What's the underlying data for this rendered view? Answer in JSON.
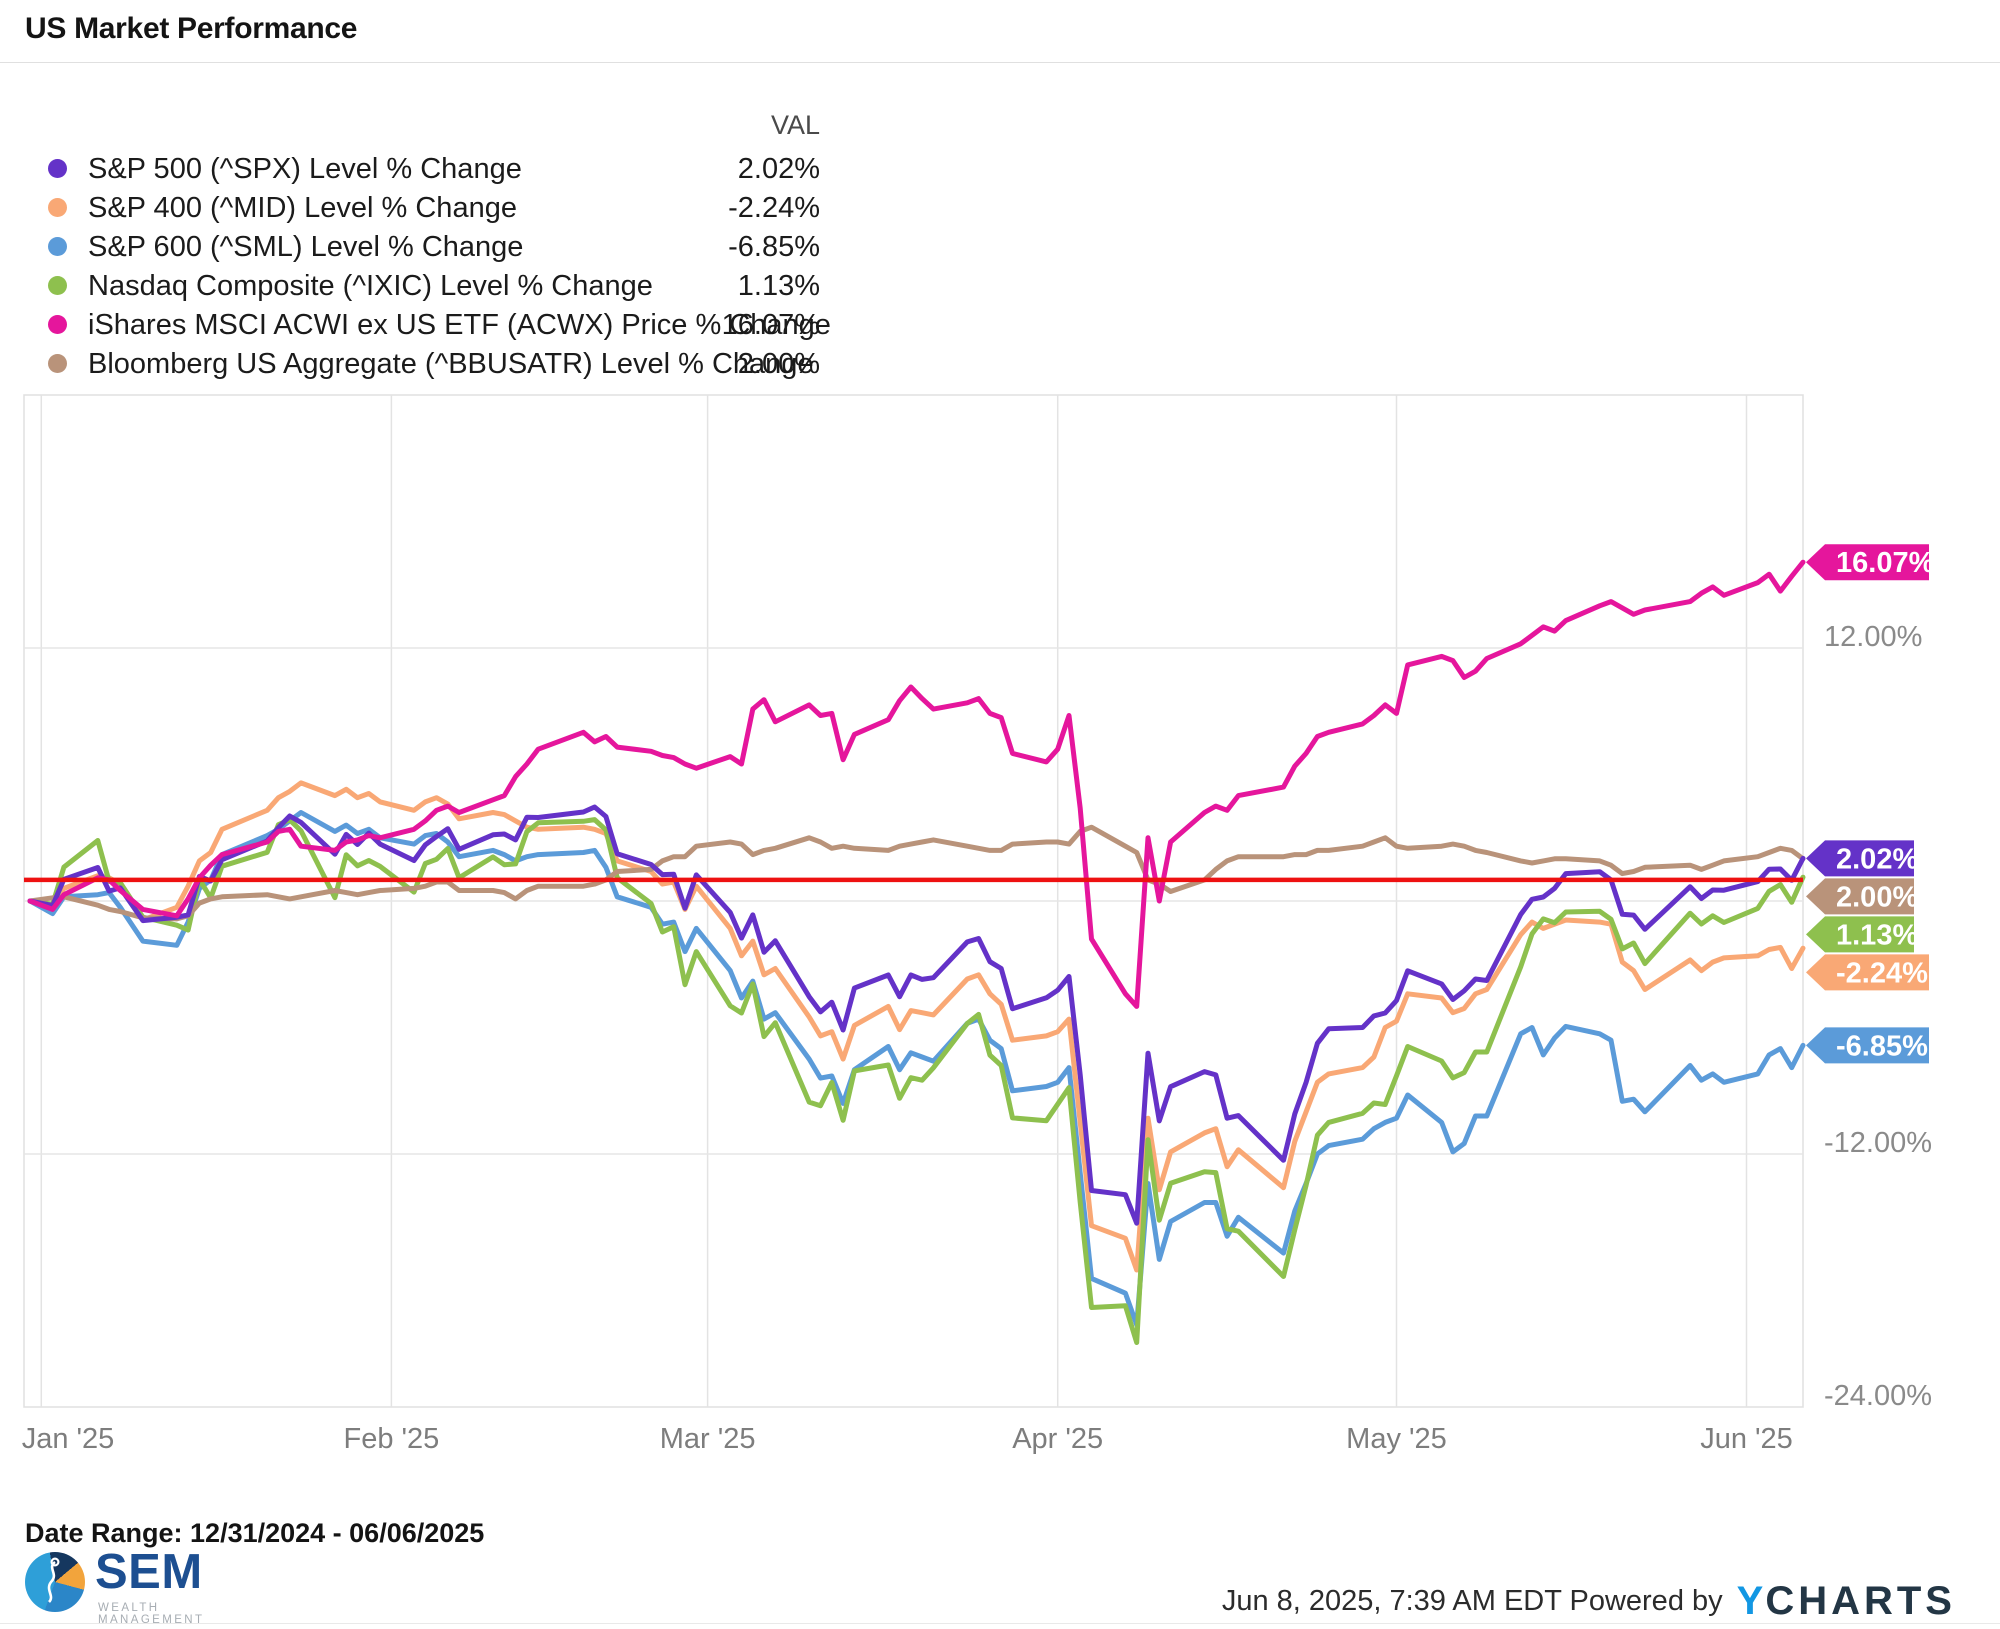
{
  "header": {
    "title": "US Market Performance"
  },
  "legend": {
    "value_header": "VAL",
    "items": [
      {
        "label": "S&P 500 (^SPX) Level % Change",
        "value": "2.02%",
        "color": "#6432c8"
      },
      {
        "label": "S&P 400 (^MID) Level % Change",
        "value": "-2.24%",
        "color": "#f9a875"
      },
      {
        "label": "S&P 600 (^SML) Level % Change",
        "value": "-6.85%",
        "color": "#5b9bd9"
      },
      {
        "label": "Nasdaq Composite (^IXIC) Level % Change",
        "value": "1.13%",
        "color": "#8ec04e"
      },
      {
        "label": "iShares MSCI ACWI ex US ETF (ACWX) Price % Change",
        "value": "16.07%",
        "color": "#e5169c"
      },
      {
        "label": "Bloomberg US Aggregate (^BBUSATR) Level % Change",
        "value": "2.00%",
        "color": "#b9937a"
      }
    ]
  },
  "chart_data": {
    "type": "line",
    "title": "US Market Performance",
    "ylabel": "% Change",
    "ylim": [
      -24,
      24
    ],
    "grid": true,
    "legend_position": "top-left",
    "reference_line": {
      "value": 1.0,
      "color": "#ee1111"
    },
    "x": {
      "dates": [
        "12/31",
        "01/02",
        "01/03",
        "01/06",
        "01/07",
        "01/08",
        "01/10",
        "01/13",
        "01/14",
        "01/15",
        "01/16",
        "01/17",
        "01/21",
        "01/22",
        "01/23",
        "01/24",
        "01/27",
        "01/28",
        "01/29",
        "01/30",
        "01/31",
        "02/03",
        "02/04",
        "02/05",
        "02/06",
        "02/07",
        "02/10",
        "02/11",
        "02/12",
        "02/13",
        "02/14",
        "02/18",
        "02/19",
        "02/20",
        "02/21",
        "02/24",
        "02/25",
        "02/26",
        "02/27",
        "02/28",
        "03/03",
        "03/04",
        "03/05",
        "03/06",
        "03/07",
        "03/10",
        "03/11",
        "03/12",
        "03/13",
        "03/14",
        "03/17",
        "03/18",
        "03/19",
        "03/20",
        "03/21",
        "03/24",
        "03/25",
        "03/26",
        "03/27",
        "03/28",
        "03/31",
        "04/01",
        "04/02",
        "04/03",
        "04/04",
        "04/07",
        "04/08",
        "04/09",
        "04/10",
        "04/11",
        "04/14",
        "04/15",
        "04/16",
        "04/17",
        "04/21",
        "04/22",
        "04/23",
        "04/24",
        "04/25",
        "04/28",
        "04/29",
        "04/30",
        "05/01",
        "05/02",
        "05/05",
        "05/06",
        "05/07",
        "05/08",
        "05/09",
        "05/12",
        "05/13",
        "05/14",
        "05/15",
        "05/16",
        "05/19",
        "05/20",
        "05/21",
        "05/22",
        "05/23",
        "05/27",
        "05/28",
        "05/29",
        "05/30",
        "06/02",
        "06/03",
        "06/04",
        "06/05",
        "06/06"
      ],
      "day_offsets": [
        0,
        2,
        3,
        6,
        7,
        8,
        10,
        13,
        14,
        15,
        16,
        17,
        21,
        22,
        23,
        24,
        27,
        28,
        29,
        30,
        31,
        34,
        35,
        36,
        37,
        38,
        41,
        42,
        43,
        44,
        45,
        49,
        50,
        51,
        52,
        55,
        56,
        57,
        58,
        59,
        62,
        63,
        64,
        65,
        66,
        69,
        70,
        71,
        72,
        73,
        76,
        77,
        78,
        79,
        80,
        83,
        84,
        85,
        86,
        87,
        90,
        91,
        92,
        93,
        94,
        97,
        98,
        99,
        100,
        101,
        104,
        105,
        106,
        107,
        111,
        112,
        113,
        114,
        115,
        118,
        119,
        120,
        121,
        122,
        125,
        126,
        127,
        128,
        129,
        132,
        133,
        134,
        135,
        136,
        139,
        140,
        141,
        142,
        143,
        147,
        148,
        149,
        150,
        153,
        154,
        155,
        156,
        157
      ],
      "ticks": [
        {
          "label": "Jan '25",
          "day": 1
        },
        {
          "label": "Feb '25",
          "day": 32
        },
        {
          "label": "Mar '25",
          "day": 60
        },
        {
          "label": "Apr '25",
          "day": 91
        },
        {
          "label": "May '25",
          "day": 121
        },
        {
          "label": "Jun '25",
          "day": 152
        }
      ]
    },
    "y_ticks": [
      {
        "label": "12.00%",
        "value": 12
      },
      {
        "label": "-12.00%",
        "value": -12
      },
      {
        "label": "-24.00%",
        "value": -24
      }
    ],
    "series": [
      {
        "name": "S&P 500 (^SPX) Level % Change",
        "short": "spx",
        "color": "#6432c8",
        "end_label": "2.02%",
        "values": [
          0,
          -0.22,
          1.03,
          1.59,
          0.47,
          0.62,
          -0.93,
          -0.77,
          -0.66,
          1.16,
          0.95,
          1.96,
          2.85,
          3.48,
          4.03,
          3.73,
          2.22,
          3.16,
          2.68,
          3.22,
          2.7,
          1.92,
          2.66,
          3.06,
          3.43,
          2.45,
          3.14,
          3.18,
          2.9,
          3.97,
          3.96,
          4.22,
          4.46,
          4.01,
          2.24,
          1.73,
          1.25,
          1.27,
          -0.34,
          1.24,
          -0.54,
          -1.76,
          -0.66,
          -2.43,
          -1.89,
          -4.54,
          -5.26,
          -4.8,
          -6.12,
          -4.13,
          -3.51,
          -4.54,
          -3.51,
          -3.72,
          -3.64,
          -1.94,
          -1.78,
          -2.88,
          -3.2,
          -5.11,
          -4.59,
          -4.23,
          -3.58,
          -8.25,
          -13.73,
          -13.93,
          -15.28,
          -7.22,
          -10.43,
          -8.81,
          -8.09,
          -8.25,
          -10.3,
          -10.18,
          -12.3,
          -10.1,
          -8.6,
          -6.75,
          -6.06,
          -6.0,
          -5.45,
          -5.31,
          -4.72,
          -3.31,
          -3.93,
          -4.67,
          -4.26,
          -3.7,
          -3.77,
          -0.64,
          0.08,
          0.19,
          0.6,
          1.3,
          1.39,
          1.0,
          -0.63,
          -0.67,
          -1.34,
          0.68,
          0.12,
          0.52,
          0.51,
          0.92,
          1.51,
          1.52,
          0.98,
          2.02
        ]
      },
      {
        "name": "S&P 400 (^MID) Level % Change",
        "short": "mid",
        "color": "#f9a875",
        "end_label": "-2.24%",
        "values": [
          0,
          -0.3,
          0.6,
          1.2,
          1.1,
          0.8,
          -0.9,
          -0.3,
          0.7,
          1.9,
          2.3,
          3.4,
          4.3,
          4.9,
          5.2,
          5.6,
          5.0,
          5.3,
          4.9,
          5.1,
          4.7,
          4.3,
          4.7,
          4.9,
          4.6,
          3.9,
          4.2,
          4.1,
          3.8,
          3.5,
          3.4,
          3.5,
          3.4,
          3.2,
          1.9,
          1.4,
          0.8,
          0.9,
          -0.4,
          0.7,
          -1.3,
          -2.6,
          -1.9,
          -3.5,
          -3.2,
          -5.5,
          -6.4,
          -6.2,
          -7.5,
          -5.9,
          -5.0,
          -6.1,
          -5.2,
          -5.3,
          -5.4,
          -3.7,
          -3.5,
          -4.4,
          -4.9,
          -6.6,
          -6.4,
          -6.2,
          -5.6,
          -10.5,
          -15.4,
          -16.0,
          -17.5,
          -10.3,
          -13.7,
          -11.9,
          -11.0,
          -10.8,
          -12.6,
          -11.8,
          -13.6,
          -11.4,
          -10.0,
          -8.6,
          -8.2,
          -7.9,
          -7.4,
          -6.0,
          -5.7,
          -4.4,
          -4.6,
          -5.3,
          -5.1,
          -4.4,
          -4.2,
          -1.6,
          -1.0,
          -1.3,
          -1.1,
          -0.9,
          -1.0,
          -1.1,
          -2.9,
          -3.3,
          -4.2,
          -2.8,
          -3.3,
          -2.9,
          -2.7,
          -2.6,
          -2.3,
          -2.2,
          -3.2,
          -2.24
        ]
      },
      {
        "name": "S&P 600 (^SML) Level % Change",
        "short": "sml",
        "color": "#5b9bd9",
        "end_label": "-6.85%",
        "values": [
          0,
          -0.6,
          0.2,
          0.3,
          0.4,
          -0.3,
          -1.9,
          -2.1,
          -1.0,
          0.6,
          1.0,
          2.2,
          3.1,
          3.4,
          3.8,
          4.2,
          3.3,
          3.6,
          3.2,
          3.4,
          3.0,
          2.7,
          3.1,
          3.2,
          2.8,
          2.1,
          2.4,
          2.2,
          1.9,
          2.1,
          2.2,
          2.3,
          2.4,
          1.6,
          0.2,
          -0.3,
          -1.1,
          -1.0,
          -2.4,
          -1.3,
          -3.3,
          -4.6,
          -3.8,
          -5.6,
          -5.3,
          -7.5,
          -8.4,
          -8.3,
          -9.6,
          -8.0,
          -6.9,
          -8.0,
          -7.2,
          -7.4,
          -7.6,
          -5.8,
          -5.6,
          -6.6,
          -7.0,
          -9.0,
          -8.8,
          -8.6,
          -7.9,
          -12.9,
          -17.9,
          -18.6,
          -20.1,
          -13.4,
          -17.0,
          -15.2,
          -14.3,
          -14.3,
          -15.9,
          -15.0,
          -16.7,
          -14.7,
          -13.4,
          -12.0,
          -11.6,
          -11.3,
          -10.8,
          -10.5,
          -10.3,
          -9.2,
          -10.5,
          -11.9,
          -11.5,
          -10.2,
          -10.2,
          -6.3,
          -6.0,
          -7.3,
          -6.5,
          -5.95,
          -6.3,
          -6.6,
          -9.5,
          -9.4,
          -10.0,
          -7.8,
          -8.5,
          -8.2,
          -8.6,
          -8.2,
          -7.3,
          -7.0,
          -7.9,
          -6.85
        ]
      },
      {
        "name": "Nasdaq Composite (^IXIC) Level % Change",
        "short": "ixic",
        "color": "#8ec04e",
        "end_label": "1.13%",
        "values": [
          0,
          -0.16,
          1.61,
          2.87,
          0.93,
          0.87,
          -0.77,
          -1.15,
          -1.38,
          1.04,
          0.14,
          1.65,
          2.31,
          3.62,
          3.85,
          3.33,
          0.16,
          2.19,
          1.67,
          1.92,
          1.64,
          0.42,
          1.78,
          1.98,
          2.49,
          1.1,
          2.09,
          1.72,
          1.76,
          3.29,
          3.71,
          3.78,
          3.86,
          3.37,
          1.1,
          -0.12,
          -1.47,
          -1.22,
          -3.97,
          -2.4,
          -4.97,
          -5.31,
          -3.93,
          -6.43,
          -5.77,
          -9.54,
          -9.71,
          -8.61,
          -10.4,
          -8.06,
          -7.78,
          -9.36,
          -8.38,
          -8.5,
          -7.91,
          -5.81,
          -5.38,
          -7.31,
          -7.8,
          -10.29,
          -10.42,
          -9.64,
          -8.85,
          -14.29,
          -19.28,
          -19.2,
          -20.94,
          -11.32,
          -15.14,
          -13.39,
          -12.84,
          -12.88,
          -15.55,
          -15.66,
          -17.81,
          -15.59,
          -13.48,
          -11.11,
          -10.5,
          -10.07,
          -9.58,
          -9.65,
          -8.29,
          -6.9,
          -7.59,
          -8.39,
          -8.14,
          -7.16,
          -7.16,
          -3.12,
          -1.56,
          -0.85,
          -1.03,
          -0.52,
          -0.49,
          -0.87,
          -2.27,
          -1.99,
          -2.97,
          -0.58,
          -1.09,
          -0.7,
          -1.02,
          -0.35,
          0.46,
          0.78,
          -0.06,
          1.13
        ]
      },
      {
        "name": "iShares MSCI ACWI ex US ETF (ACWX) Price % Change",
        "short": "acwx",
        "color": "#e5169c",
        "end_label": "16.07%",
        "values": [
          0,
          -0.4,
          0.3,
          1.1,
          1.0,
          0.5,
          -0.4,
          -0.7,
          0.1,
          1.1,
          1.7,
          2.2,
          2.8,
          3.3,
          3.4,
          2.6,
          2.4,
          2.8,
          2.9,
          3.1,
          3.0,
          3.4,
          3.8,
          4.3,
          4.5,
          4.2,
          4.8,
          5.0,
          5.9,
          6.5,
          7.2,
          8.0,
          7.55,
          7.8,
          7.3,
          7.1,
          6.9,
          6.8,
          6.5,
          6.3,
          6.85,
          6.5,
          9.1,
          9.55,
          8.5,
          9.3,
          8.8,
          8.9,
          6.7,
          7.9,
          8.6,
          9.5,
          10.15,
          9.6,
          9.1,
          9.4,
          9.6,
          8.9,
          8.7,
          7.0,
          6.6,
          7.2,
          8.8,
          4.4,
          -1.8,
          -4.4,
          -5.0,
          3.0,
          0.0,
          2.8,
          4.2,
          4.5,
          4.3,
          5.0,
          5.4,
          6.4,
          7.0,
          7.8,
          8.0,
          8.4,
          8.8,
          9.3,
          8.9,
          11.2,
          11.6,
          11.4,
          10.6,
          10.9,
          11.5,
          12.2,
          12.6,
          13.0,
          12.8,
          13.3,
          14.0,
          14.2,
          13.9,
          13.6,
          13.8,
          14.2,
          14.6,
          14.9,
          14.5,
          15.1,
          15.5,
          14.7,
          15.4,
          16.07
        ]
      },
      {
        "name": "Bloomberg US Aggregate (^BBUSATR) Level % Change",
        "short": "bbusatr",
        "color": "#b9937a",
        "end_label": "2.00%",
        "values": [
          0,
          0.15,
          0.2,
          -0.2,
          -0.4,
          -0.5,
          -0.8,
          -0.85,
          -0.7,
          -0.1,
          0.1,
          0.2,
          0.3,
          0.2,
          0.1,
          0.2,
          0.5,
          0.4,
          0.3,
          0.4,
          0.5,
          0.6,
          0.7,
          0.9,
          0.9,
          0.5,
          0.5,
          0.4,
          0.1,
          0.5,
          0.7,
          0.7,
          0.8,
          1.0,
          1.4,
          1.5,
          1.9,
          2.1,
          2.1,
          2.6,
          2.8,
          2.7,
          2.2,
          2.4,
          2.5,
          3.0,
          2.8,
          2.5,
          2.6,
          2.5,
          2.4,
          2.6,
          2.7,
          2.8,
          2.9,
          2.6,
          2.5,
          2.4,
          2.4,
          2.7,
          2.8,
          2.8,
          2.7,
          3.3,
          3.5,
          2.6,
          2.3,
          1.0,
          0.8,
          0.45,
          1.0,
          1.5,
          1.9,
          2.1,
          2.1,
          2.2,
          2.2,
          2.4,
          2.4,
          2.6,
          2.8,
          3.0,
          2.6,
          2.5,
          2.6,
          2.7,
          2.6,
          2.4,
          2.3,
          1.9,
          1.8,
          1.9,
          2.0,
          2.0,
          1.9,
          1.7,
          1.3,
          1.4,
          1.6,
          1.7,
          1.5,
          1.7,
          1.9,
          2.1,
          2.3,
          2.5,
          2.4,
          2.0
        ]
      }
    ]
  },
  "footer": {
    "date_range": "Date Range: 12/31/2024 - 06/06/2025",
    "timestamp": "Jun 8, 2025, 7:39 AM EDT Powered by",
    "ycharts_y": "Y",
    "ycharts_rest": "CHARTS",
    "sem_name": "SEM",
    "sem_subtitle": "WEALTH MANAGEMENT"
  }
}
